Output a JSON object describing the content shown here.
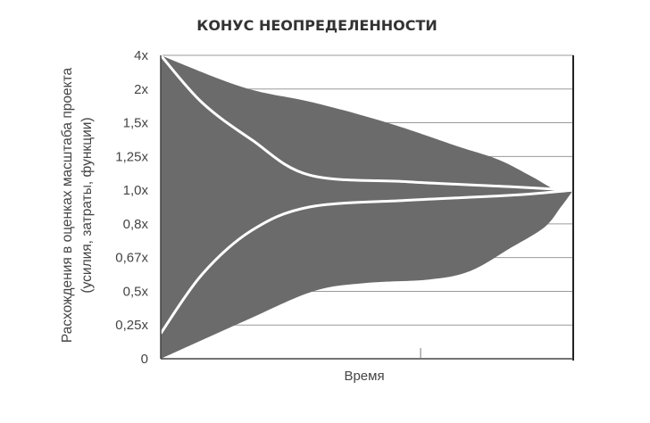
{
  "chart_data": {
    "type": "area",
    "title": "КОНУС НЕОПРЕДЕЛЕННОСТИ",
    "xlabel": "Время",
    "ylabel_lines": [
      "Расхождения в оценках масштаба проекта",
      "(усилия, затраты, функции)"
    ],
    "y_ticks": [
      "4x",
      "2x",
      "1,5x",
      "1,25x",
      "1,0x",
      "0,8x",
      "0,67x",
      "0,5x",
      "0,25x",
      "0"
    ],
    "x_range": [
      0,
      1
    ],
    "grid": true,
    "series": [
      {
        "role": "cone-upper-boundary",
        "x": [
          0,
          0.2,
          0.37,
          0.55,
          0.72,
          0.82,
          0.9,
          0.96,
          1.0
        ],
        "y_level": [
          9,
          8.05,
          7.6,
          7.0,
          6.3,
          5.9,
          5.4,
          5.0,
          5.0
        ]
      },
      {
        "role": "cone-lower-boundary",
        "x": [
          0,
          0.2,
          0.37,
          0.5,
          0.65,
          0.75,
          0.85,
          0.93,
          0.97,
          1.0
        ],
        "y_level": [
          0,
          1.1,
          2.0,
          2.25,
          2.35,
          2.6,
          3.3,
          3.9,
          4.5,
          5.0
        ]
      },
      {
        "role": "upper-estimate-line",
        "x": [
          0,
          0.1,
          0.22,
          0.36,
          0.6,
          0.85,
          1.0
        ],
        "y_level": [
          9,
          7.6,
          6.5,
          5.45,
          5.25,
          5.1,
          5.0
        ]
      },
      {
        "role": "lower-estimate-line",
        "x": [
          0,
          0.1,
          0.22,
          0.36,
          0.6,
          0.85,
          1.0
        ],
        "y_level": [
          0.75,
          2.5,
          3.8,
          4.5,
          4.7,
          4.85,
          5.0
        ]
      }
    ]
  }
}
